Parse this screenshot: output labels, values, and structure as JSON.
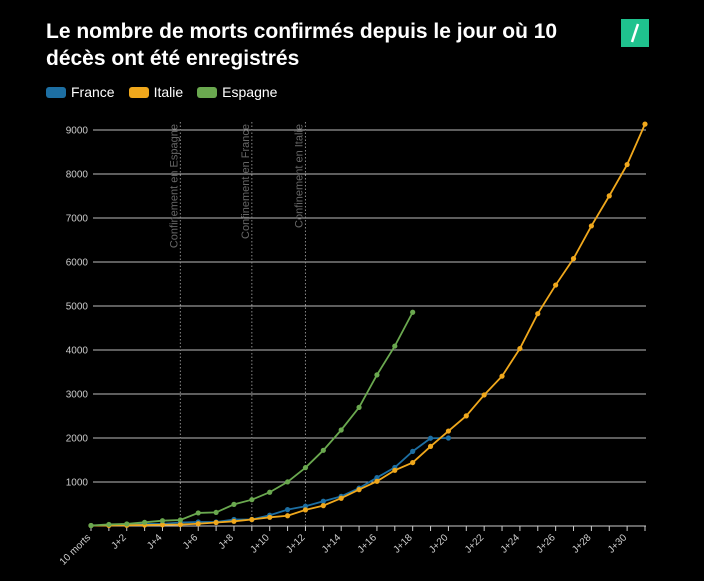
{
  "chart_data": {
    "type": "line",
    "title": "Le nombre de morts confirmés depuis le jour où 10 décès ont été enregistrés",
    "categories": [
      "10 morts",
      null,
      "J+2",
      null,
      "J+4",
      null,
      "J+6",
      null,
      "J+8",
      null,
      "J+10",
      null,
      "J+12",
      null,
      "J+14",
      null,
      "J+16",
      null,
      "J+18",
      null,
      "J+20",
      null,
      "J+22",
      null,
      "J+24",
      null,
      "J+26",
      null,
      "J+28",
      null,
      "J+30",
      null
    ],
    "series": [
      {
        "name": "France",
        "color": "#1d6fa3",
        "values": [
          11,
          19,
          33,
          48,
          48,
          79,
          91,
          91,
          148,
          148,
          244,
          372,
          450,
          562,
          674,
          860,
          1100,
          1331,
          1696,
          1995,
          2000,
          null,
          null,
          null,
          null,
          null,
          null,
          null,
          null,
          null,
          null,
          null
        ]
      },
      {
        "name": "Italie",
        "color": "#f0a81c",
        "values": [
          10,
          12,
          17,
          21,
          29,
          34,
          52,
          79,
          107,
          148,
          197,
          233,
          366,
          463,
          631,
          827,
          1016,
          1266,
          1441,
          1809,
          2158,
          2503,
          2978,
          3405,
          4032,
          4825,
          5476,
          6077,
          6820,
          7503,
          8215,
          9134
        ]
      },
      {
        "name": "Espagne",
        "color": "#6aa84f",
        "values": [
          10,
          35,
          47,
          84,
          121,
          136,
          297,
          309,
          491,
          598,
          767,
          1002,
          1326,
          1720,
          2182,
          2696,
          3434,
          4089,
          4858,
          null,
          null,
          null,
          null,
          null,
          null,
          null,
          null,
          null,
          null,
          null,
          null,
          null
        ]
      }
    ],
    "annotations": [
      {
        "text": "Confinement en Espagne",
        "index": 5
      },
      {
        "text": "Confinement en France",
        "index": 9
      },
      {
        "text": "Confinement en Italie",
        "index": 12
      }
    ],
    "ylim": [
      0,
      9000
    ],
    "yticks": [
      1000,
      2000,
      3000,
      4000,
      5000,
      6000,
      7000,
      8000,
      9000
    ],
    "grid": true
  }
}
